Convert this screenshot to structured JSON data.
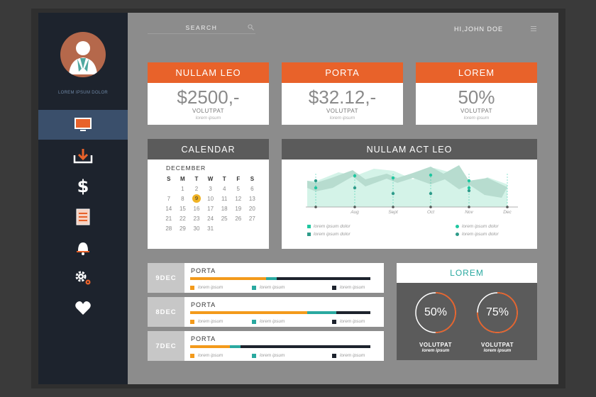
{
  "sidebar": {
    "avatar_label": "LOREM IPSUM DOLOR",
    "items": [
      {
        "icon": "monitor-icon",
        "active": true
      },
      {
        "icon": "download-icon",
        "active": false
      },
      {
        "icon": "dollar-icon",
        "active": false
      },
      {
        "icon": "document-icon",
        "active": false
      },
      {
        "icon": "bell-icon",
        "active": false
      },
      {
        "icon": "gears-icon",
        "active": false
      },
      {
        "icon": "heart-icon",
        "active": false
      }
    ]
  },
  "header": {
    "search_placeholder": "SEARCH",
    "greeting": "HI,JOHN DOE"
  },
  "stats": [
    {
      "title": "NULLAM LEO",
      "value": "$2500,-",
      "label": "VOLUTPAT",
      "sublabel": "lorem ipsum"
    },
    {
      "title": "PORTA",
      "value": "$32.12,-",
      "label": "VOLUTPAT",
      "sublabel": "lorem ipsum"
    },
    {
      "title": "LOREM",
      "value": "50%",
      "label": "VOLUTPAT",
      "sublabel": "lorem ipsum"
    }
  ],
  "calendar": {
    "title": "CALENDAR",
    "month": "DECEMBER",
    "weekdays": [
      "S",
      "M",
      "T",
      "W",
      "T",
      "F",
      "S"
    ],
    "weeks": [
      [
        "",
        "1",
        "2",
        "3",
        "4",
        "5",
        "6"
      ],
      [
        "7",
        "8",
        "9",
        "10",
        "11",
        "12",
        "13"
      ],
      [
        "14",
        "15",
        "16",
        "17",
        "18",
        "19",
        "20"
      ],
      [
        "21",
        "22",
        "23",
        "24",
        "25",
        "26",
        "27"
      ],
      [
        "28",
        "29",
        "30",
        "31",
        "",
        "",
        ""
      ]
    ],
    "highlight": "9"
  },
  "chart": {
    "title": "NULLAM ACT LEO",
    "x_labels": [
      "Aug",
      "Sept",
      "Oct",
      "Nov",
      "Dec"
    ],
    "legend": [
      "lorem ipsum dolor",
      "lorem ipsum dolor",
      "lorem ipsum dolor",
      "lorem ipsum dolor"
    ],
    "colors": {
      "dark": "#2e9b8a",
      "light": "#1fc7a0",
      "fill_dark": "#b7dccf",
      "fill_light": "#d4f3e8"
    }
  },
  "progress": [
    {
      "date": "9DEC",
      "title": "PORTA",
      "orange": 0.42,
      "teal": 0.06,
      "legend": [
        "lorem ipsum",
        "lorem ipsum",
        "lorem ipsum"
      ]
    },
    {
      "date": "8DEC",
      "title": "PORTA",
      "orange": 0.65,
      "teal": 0.16,
      "legend": [
        "lorem ipsum",
        "lorem ipsum",
        "lorem ipsum"
      ]
    },
    {
      "date": "7DEC",
      "title": "PORTA",
      "orange": 0.22,
      "teal": 0.06,
      "legend": [
        "lorem ipsum",
        "lorem ipsum",
        "lorem ipsum"
      ]
    }
  ],
  "rings": {
    "title": "LOREM",
    "items": [
      {
        "value": "50%",
        "fraction": 0.5,
        "label": "VOLUTPAT",
        "sublabel": "lorem ipsum"
      },
      {
        "value": "75%",
        "fraction": 0.75,
        "label": "VOLUTPAT",
        "sublabel": "lorem ipsum"
      }
    ]
  },
  "colors": {
    "orange": "#e8622a",
    "bar_orange": "#f39a1b",
    "teal": "#2aa9a0",
    "navy": "#1d232d"
  }
}
